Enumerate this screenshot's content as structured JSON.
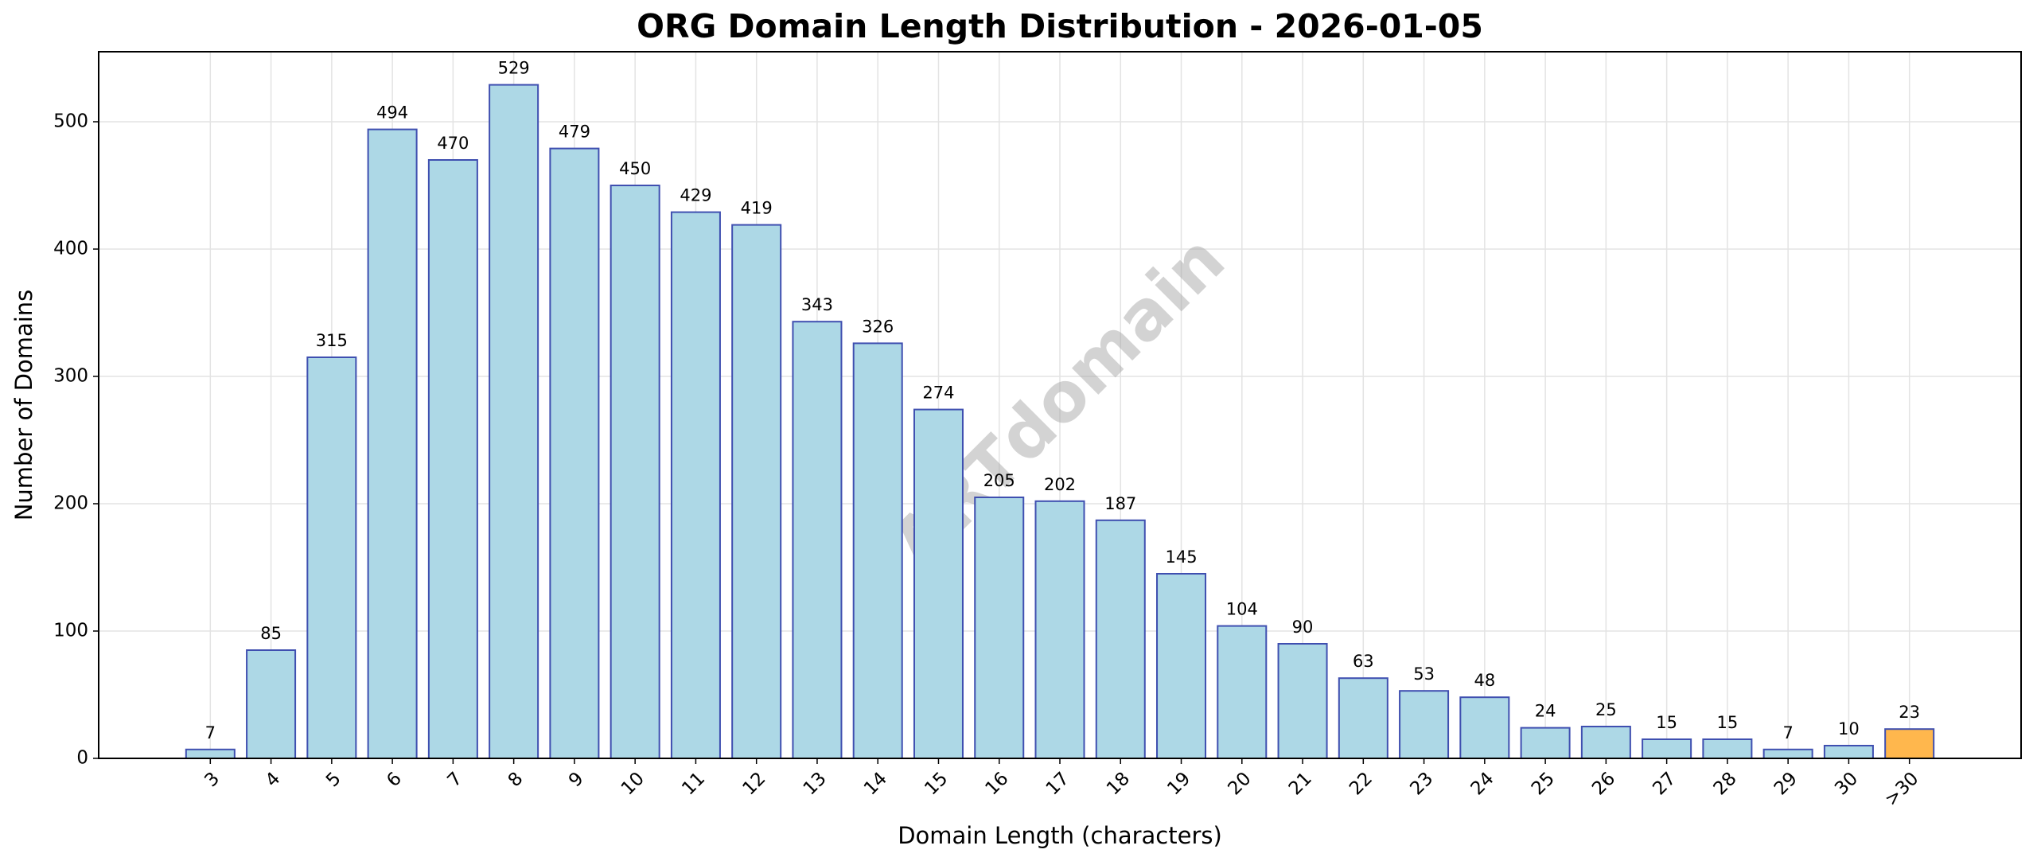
{
  "chart_data": {
    "type": "bar",
    "title": "ORG Domain Length Distribution - 2026-01-05",
    "xlabel": "Domain Length (characters)",
    "ylabel": "Number of Domains",
    "watermark": "ARTdomain",
    "categories": [
      "3",
      "4",
      "5",
      "6",
      "7",
      "8",
      "9",
      "10",
      "11",
      "12",
      "13",
      "14",
      "15",
      "16",
      "17",
      "18",
      "19",
      "20",
      "21",
      "22",
      "23",
      "24",
      "25",
      "26",
      "27",
      "28",
      "29",
      "30",
      ">30"
    ],
    "values": [
      7,
      85,
      315,
      494,
      470,
      529,
      479,
      450,
      429,
      419,
      343,
      326,
      274,
      205,
      202,
      187,
      145,
      104,
      90,
      63,
      53,
      48,
      24,
      25,
      15,
      15,
      7,
      10,
      23
    ],
    "colors": [
      "#add8e6",
      "#add8e6",
      "#add8e6",
      "#add8e6",
      "#add8e6",
      "#add8e6",
      "#add8e6",
      "#add8e6",
      "#add8e6",
      "#add8e6",
      "#add8e6",
      "#add8e6",
      "#add8e6",
      "#add8e6",
      "#add8e6",
      "#add8e6",
      "#add8e6",
      "#add8e6",
      "#add8e6",
      "#add8e6",
      "#add8e6",
      "#add8e6",
      "#add8e6",
      "#add8e6",
      "#add8e6",
      "#add8e6",
      "#add8e6",
      "#add8e6",
      "#ffb74d"
    ],
    "edgecolor": "#3f4fb0",
    "ylim": [
      0,
      555
    ],
    "yticks": [
      0,
      100,
      200,
      300,
      400,
      500
    ],
    "grid": true
  }
}
